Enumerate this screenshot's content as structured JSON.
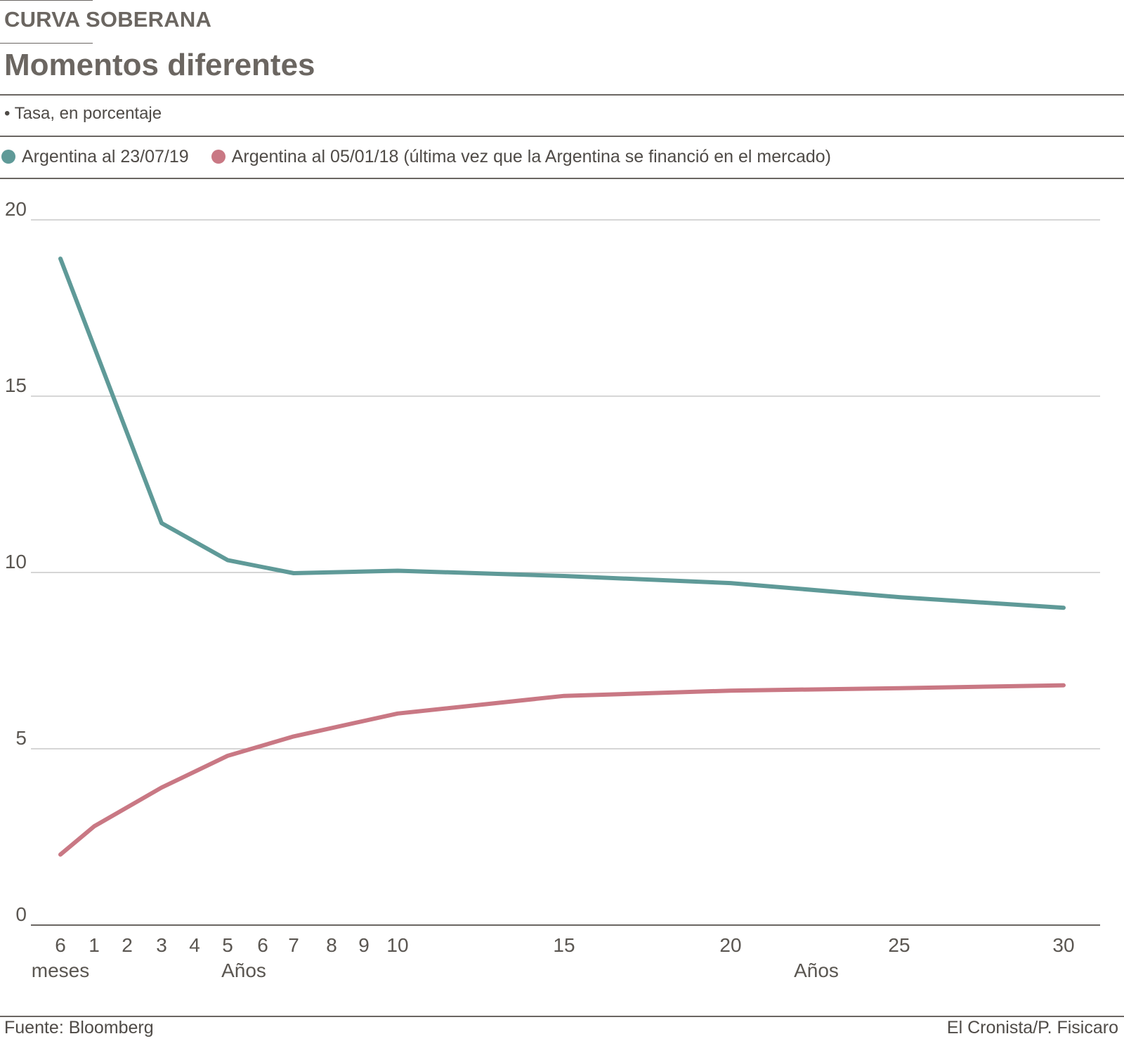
{
  "header": {
    "kicker": "CURVA SOBERANA",
    "title": "Momentos diferentes",
    "unit_note": "• Tasa, en porcentaje"
  },
  "legend": [
    {
      "label": "Argentina al 23/07/19",
      "color": "#5f9a98"
    },
    {
      "label": "Argentina al 05/01/18 (última vez que la Argentina se financió en el mercado)",
      "color": "#c97884"
    }
  ],
  "footer": {
    "source": "Fuente: Bloomberg",
    "credit": "El Cronista/P. Fisicaro"
  },
  "chart_data": {
    "type": "line",
    "categories": [
      "6",
      "1",
      "2",
      "3",
      "4",
      "5",
      "6",
      "7",
      "8",
      "9",
      "10",
      "15",
      "20",
      "25",
      "30"
    ],
    "x_group_labels": [
      {
        "label": "meses",
        "under": "6"
      },
      {
        "label": "Años",
        "under": "5"
      },
      {
        "label": "Años",
        "under": "20-25"
      }
    ],
    "ylim": [
      0,
      20
    ],
    "yticks": [
      0,
      5,
      10,
      15,
      20
    ],
    "grid": true,
    "series": [
      {
        "name": "Argentina al 23/07/19",
        "color": "#5f9a98",
        "points": [
          {
            "cat": 0,
            "y": 18.9
          },
          {
            "cat": 3,
            "y": 11.4
          },
          {
            "cat": 5,
            "y": 10.35
          },
          {
            "cat": 7,
            "y": 9.98
          },
          {
            "cat": 10,
            "y": 10.05
          },
          {
            "cat": 11,
            "y": 9.9
          },
          {
            "cat": 12,
            "y": 9.7
          },
          {
            "cat": 13,
            "y": 9.3
          },
          {
            "cat": 14,
            "y": 9.0
          }
        ]
      },
      {
        "name": "Argentina al 05/01/18 (última vez que la Argentina se financió en el mercado)",
        "color": "#c97884",
        "points": [
          {
            "cat": 0,
            "y": 2.0
          },
          {
            "cat": 1,
            "y": 2.8
          },
          {
            "cat": 3,
            "y": 3.9
          },
          {
            "cat": 5,
            "y": 4.8
          },
          {
            "cat": 7,
            "y": 5.35
          },
          {
            "cat": 10,
            "y": 6.0
          },
          {
            "cat": 11,
            "y": 6.5
          },
          {
            "cat": 12,
            "y": 6.65
          },
          {
            "cat": 13,
            "y": 6.72
          },
          {
            "cat": 14,
            "y": 6.8
          }
        ]
      }
    ]
  }
}
